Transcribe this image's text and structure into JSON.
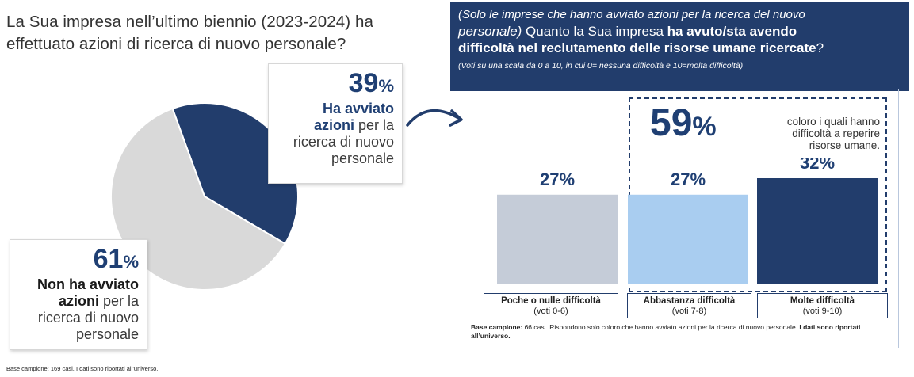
{
  "left": {
    "title_line1": "La Sua impresa nell’ultimo biennio (2023-2024) ha",
    "title_line2": "effettuato azioni di ricerca di nuovo personale?",
    "base_note": "Base campione: 169 casi. I dati sono riportati all’universo."
  },
  "callout_yes": {
    "pct_num": "39",
    "pct_sign": "%",
    "bold1": "Ha avviato",
    "bold2": "azioni",
    "rest1": " per la",
    "rest2": "ricerca di nuovo",
    "rest3": "personale"
  },
  "callout_no": {
    "pct_num": "61",
    "pct_sign": "%",
    "bold1": "Non ha avviato",
    "bold2": "azioni",
    "rest1": " per la",
    "rest2": "ricerca di nuovo",
    "rest3": "personale"
  },
  "right": {
    "header_sub_line1": "(Solo le imprese che hanno avviato azioni per la ricerca del nuovo",
    "header_sub_line2_italic": "personale)",
    "header_q_part1": " Quanto la Sua impresa ",
    "header_q_bold1": "ha avuto/sta avendo",
    "header_q_bold2": "difficoltà nel reclutamento delle risorse umane ricercate",
    "header_q_end": "?",
    "header_note": "(Voti su una scala da 0 a 10, in cui 0= nessuna difficoltà e 10=molta difficoltà)",
    "highlight_pct_num": "59",
    "highlight_pct_sign": "%",
    "highlight_note_line1": "coloro i quali hanno",
    "highlight_note_line2": "difficoltà a reperire",
    "highlight_note_line3": "risorse umane.",
    "base_bold": "Base campione:",
    "base_text": " 66 casi. Rispondono solo coloro che hanno avviato azioni per la ricerca di nuovo personale. ",
    "base_bold2": "I dati sono riportati all’universo."
  },
  "chart_data": [
    {
      "type": "pie",
      "categories": [
        "Ha avviato azioni per la ricerca di nuovo personale",
        "Non ha avviato azioni per la ricerca di nuovo personale"
      ],
      "values": [
        39,
        61
      ],
      "colors": [
        "#223d6c",
        "#d9d9d9"
      ]
    },
    {
      "type": "bar",
      "categories": [
        "Poche o nulle difficoltà",
        "Abbastanza difficoltà",
        "Molte difficoltà"
      ],
      "category_sublabels": [
        "(voti 0-6)",
        "(voti 7-8)",
        "(voti 9-10)"
      ],
      "values": [
        27,
        27,
        32
      ],
      "value_labels": [
        "27%",
        "27%",
        "32%"
      ],
      "colors": [
        "#c5ccd8",
        "#a9cdf0",
        "#223d6c"
      ]
    }
  ]
}
